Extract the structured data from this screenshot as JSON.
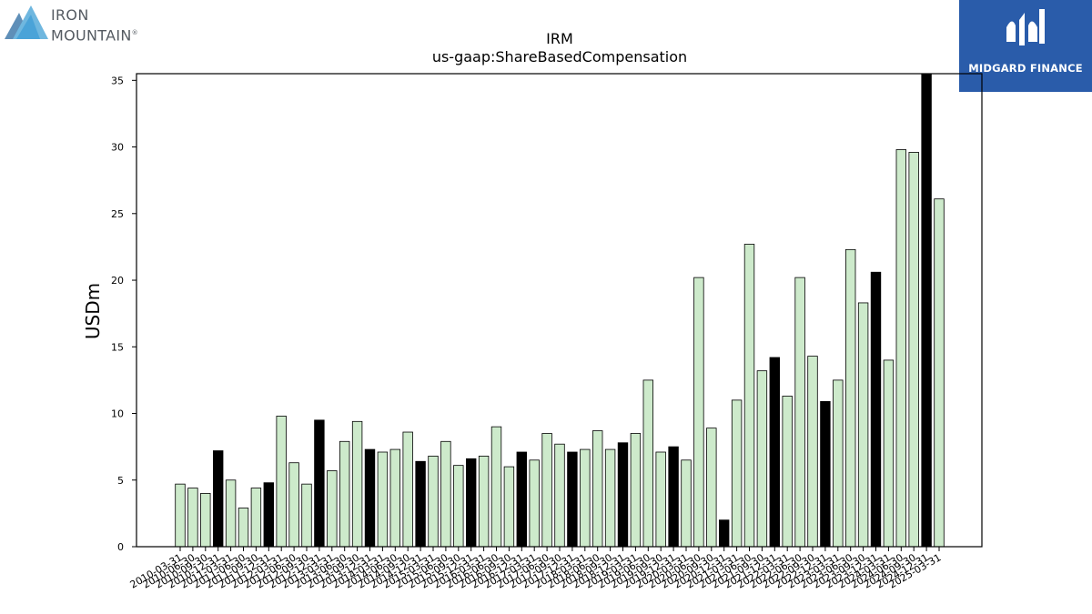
{
  "logos": {
    "left_line1": "IRON",
    "left_line2": "MOUNTAIN",
    "left_mark": "®",
    "right_text": "MIDGARD FINANCE"
  },
  "colors": {
    "bar_light": "#cdeacb",
    "bar_dark": "#000000",
    "bar_edge": "#000000",
    "brand_blue": "#2a5caa"
  },
  "chart_data": {
    "type": "bar",
    "title": "IRM",
    "subtitle": "us-gaap:ShareBasedCompensation",
    "ylabel": "USDm",
    "xlabel": "",
    "ylim": [
      0,
      35.5
    ],
    "yticks": [
      0,
      5,
      10,
      15,
      20,
      25,
      30,
      35
    ],
    "grid": false,
    "categories": [
      "2010-03-31",
      "2010-06-30",
      "2010-09-30",
      "2010-12-31",
      "2011-03-31",
      "2011-06-30",
      "2011-09-30",
      "2011-12-31",
      "2012-03-31",
      "2012-06-30",
      "2012-09-30",
      "2012-12-31",
      "2013-03-31",
      "2013-06-30",
      "2013-09-30",
      "2013-12-31",
      "2014-03-31",
      "2014-06-30",
      "2014-09-30",
      "2014-12-31",
      "2015-03-31",
      "2015-06-30",
      "2015-09-30",
      "2015-12-31",
      "2016-03-31",
      "2016-06-30",
      "2016-09-30",
      "2016-12-31",
      "2017-03-31",
      "2017-06-30",
      "2017-09-30",
      "2017-12-31",
      "2018-03-31",
      "2018-06-30",
      "2018-09-30",
      "2018-12-31",
      "2019-03-31",
      "2019-06-30",
      "2019-09-30",
      "2019-12-31",
      "2020-03-31",
      "2020-06-30",
      "2020-09-30",
      "2020-12-31",
      "2021-03-31",
      "2021-06-30",
      "2021-09-30",
      "2021-12-31",
      "2022-03-31",
      "2022-06-30",
      "2022-09-30",
      "2022-12-31",
      "2023-03-31",
      "2023-06-30",
      "2023-09-30",
      "2023-12-31",
      "2024-03-31",
      "2024-06-30",
      "2024-09-30",
      "2024-12-31",
      "2025-03-31"
    ],
    "values": [
      4.7,
      4.4,
      4.0,
      7.2,
      5.0,
      2.9,
      4.4,
      4.8,
      9.8,
      6.3,
      4.7,
      9.5,
      5.7,
      7.9,
      9.4,
      7.3,
      7.1,
      7.3,
      8.6,
      6.4,
      6.8,
      7.9,
      6.1,
      6.6,
      6.8,
      9.0,
      6.0,
      7.1,
      6.5,
      8.5,
      7.7,
      7.1,
      7.3,
      8.7,
      7.3,
      7.8,
      8.5,
      12.5,
      7.1,
      7.5,
      6.5,
      20.2,
      8.9,
      2.0,
      11.0,
      22.7,
      13.2,
      14.2,
      11.3,
      20.2,
      14.3,
      10.9,
      12.5,
      22.3,
      18.3,
      20.6,
      14.0,
      29.8,
      29.6,
      35.5,
      26.1
    ],
    "highlight": "Q4 (December) bars are drawn in black; all other quarters in light green"
  }
}
